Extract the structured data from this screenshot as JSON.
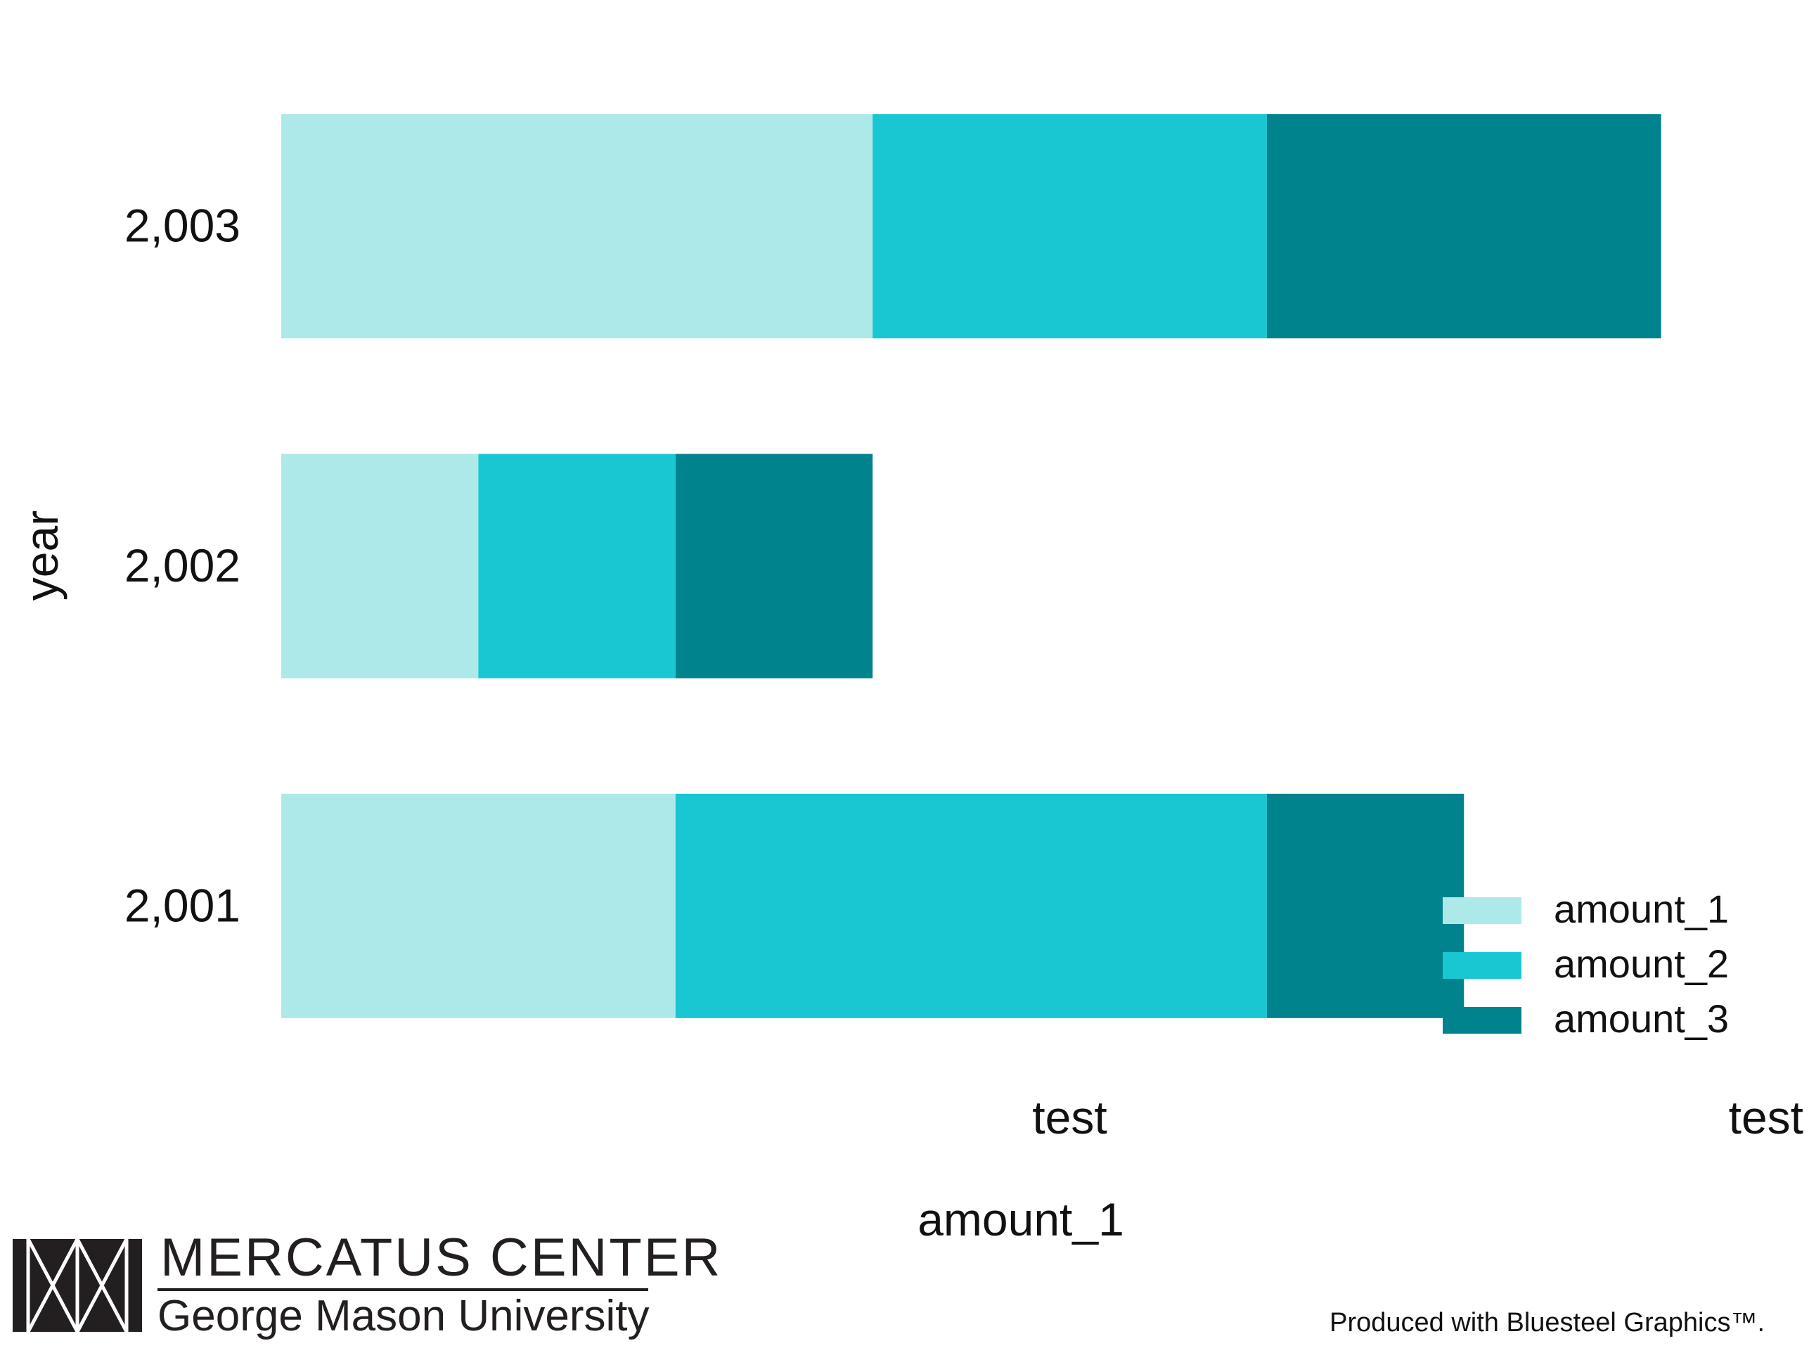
{
  "chart_data": {
    "type": "bar",
    "orientation": "horizontal",
    "stacked": true,
    "categories": [
      "2,001",
      "2,002",
      "2,003"
    ],
    "series": [
      {
        "name": "amount_1",
        "values": [
          2,
          1,
          3
        ],
        "color": "#aee9e9"
      },
      {
        "name": "amount_2",
        "values": [
          3,
          1,
          2
        ],
        "color": "#19c7d2"
      },
      {
        "name": "amount_3",
        "values": [
          1,
          1,
          2
        ],
        "color": "#00838c"
      }
    ],
    "xlim": [
      0,
      8
    ],
    "x_ticks": [
      {
        "value": 4,
        "label": "test"
      },
      {
        "value": 8,
        "label": "test"
      }
    ],
    "xlabel": "amount_1",
    "ylabel": "year",
    "grid": false,
    "legend_position": "bottom-right"
  },
  "branding": {
    "logo_line1": "MERCATUS CENTER",
    "logo_line2": "George Mason University",
    "credit": "Produced with Bluesteel Graphics™."
  }
}
